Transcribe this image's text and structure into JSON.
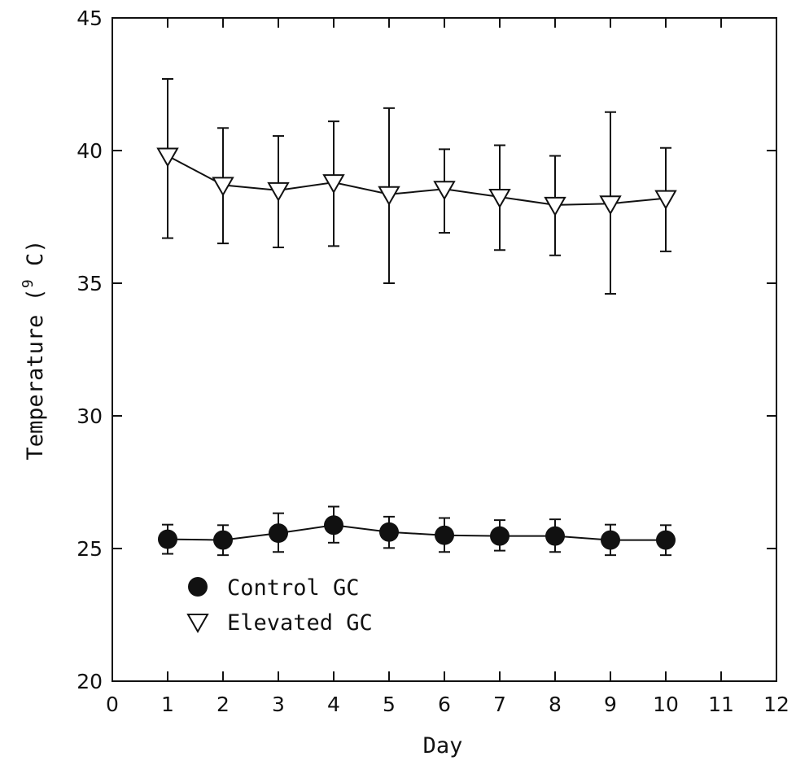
{
  "chart_data": {
    "type": "line",
    "xlabel": "Day",
    "ylabel": "Temperature",
    "ylabel_unit_sup": "9",
    "ylabel_unit_tail": " C)",
    "ylabel_unit_open": " (",
    "xlim": [
      0,
      12
    ],
    "ylim": [
      20,
      45
    ],
    "x_ticks": [
      0,
      1,
      2,
      3,
      4,
      5,
      6,
      7,
      8,
      9,
      10,
      11,
      12
    ],
    "y_ticks": [
      20,
      25,
      30,
      35,
      40,
      45
    ],
    "grid": false,
    "legend_position": "bottom-left",
    "x": [
      1,
      2,
      3,
      4,
      5,
      6,
      7,
      8,
      9,
      10
    ],
    "series": [
      {
        "name": "Control GC",
        "marker": "filled-circle",
        "values": [
          25.35,
          25.32,
          25.58,
          25.88,
          25.62,
          25.5,
          25.47,
          25.47,
          25.32,
          25.32
        ],
        "err_upper": [
          25.9,
          25.88,
          26.33,
          26.58,
          26.2,
          26.15,
          26.07,
          26.1,
          25.9,
          25.88
        ],
        "err_lower": [
          24.8,
          24.75,
          24.87,
          25.22,
          25.02,
          24.87,
          24.92,
          24.87,
          24.75,
          24.75
        ]
      },
      {
        "name": "Elevated GC",
        "marker": "open-triangle-down",
        "values": [
          39.8,
          38.7,
          38.5,
          38.8,
          38.35,
          38.55,
          38.25,
          37.95,
          38.0,
          38.2
        ],
        "err_upper": [
          42.7,
          40.85,
          40.55,
          41.1,
          41.6,
          40.05,
          40.2,
          39.8,
          41.45,
          40.1
        ],
        "err_lower": [
          36.7,
          36.5,
          36.35,
          36.4,
          35.0,
          36.9,
          36.25,
          36.05,
          34.6,
          36.2
        ]
      }
    ]
  }
}
